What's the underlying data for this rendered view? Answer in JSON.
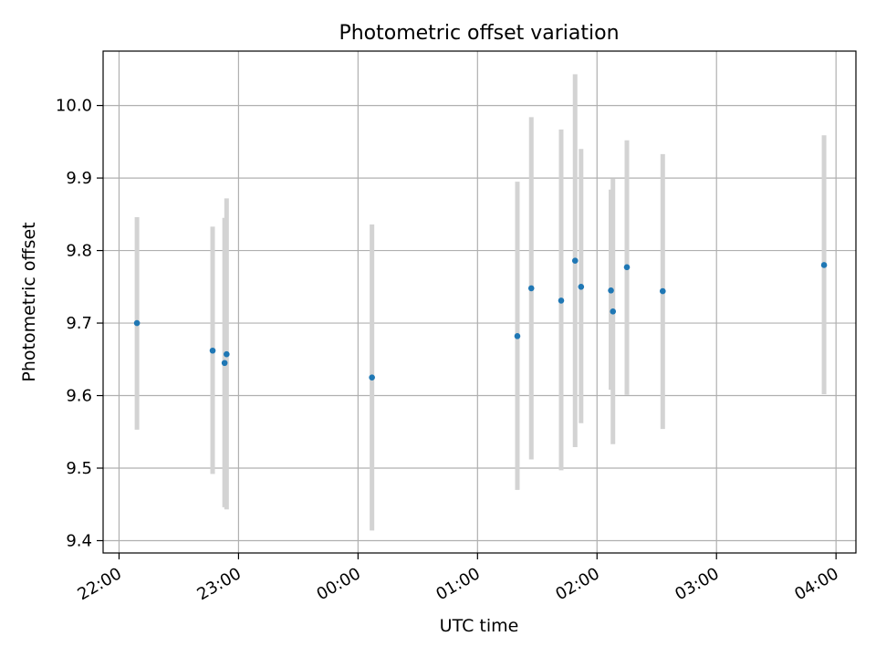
{
  "chart_data": {
    "type": "scatter",
    "title": "Photometric offset variation",
    "xlabel": "UTC time",
    "ylabel": "Photometric offset",
    "x_tick_labels": [
      "22:00",
      "23:00",
      "00:00",
      "01:00",
      "02:00",
      "03:00",
      "04:00"
    ],
    "y_ticks": [
      9.4,
      9.5,
      9.6,
      9.7,
      9.8,
      9.9,
      10.0
    ],
    "y_tick_labels": [
      "9.4",
      "9.5",
      "9.6",
      "9.7",
      "9.8",
      "9.9",
      "10.0"
    ],
    "xlim": [
      "21:52",
      "04:10"
    ],
    "ylim": [
      9.383,
      10.075
    ],
    "grid": true,
    "point_color": "#1f77b4",
    "error_color": "#d3d3d3",
    "points": [
      {
        "x": "22:09",
        "y": 9.7,
        "yerr_low": 9.553,
        "yerr_high": 9.846
      },
      {
        "x": "22:47",
        "y": 9.662,
        "yerr_low": 9.492,
        "yerr_high": 9.833
      },
      {
        "x": "22:53",
        "y": 9.645,
        "yerr_low": 9.446,
        "yerr_high": 9.845
      },
      {
        "x": "22:54",
        "y": 9.657,
        "yerr_low": 9.443,
        "yerr_high": 9.872
      },
      {
        "x": "00:07",
        "y": 9.625,
        "yerr_low": 9.414,
        "yerr_high": 9.836
      },
      {
        "x": "01:20",
        "y": 9.682,
        "yerr_low": 9.47,
        "yerr_high": 9.895
      },
      {
        "x": "01:27",
        "y": 9.748,
        "yerr_low": 9.512,
        "yerr_high": 9.984
      },
      {
        "x": "01:42",
        "y": 9.731,
        "yerr_low": 9.497,
        "yerr_high": 9.967
      },
      {
        "x": "01:49",
        "y": 9.786,
        "yerr_low": 9.529,
        "yerr_high": 10.043
      },
      {
        "x": "01:52",
        "y": 9.75,
        "yerr_low": 9.562,
        "yerr_high": 9.94
      },
      {
        "x": "02:07",
        "y": 9.745,
        "yerr_low": 9.608,
        "yerr_high": 9.884
      },
      {
        "x": "02:08",
        "y": 9.716,
        "yerr_low": 9.533,
        "yerr_high": 9.899
      },
      {
        "x": "02:15",
        "y": 9.777,
        "yerr_low": 9.601,
        "yerr_high": 9.952
      },
      {
        "x": "02:33",
        "y": 9.744,
        "yerr_low": 9.554,
        "yerr_high": 9.933
      },
      {
        "x": "03:54",
        "y": 9.78,
        "yerr_low": 9.602,
        "yerr_high": 9.959
      }
    ]
  }
}
